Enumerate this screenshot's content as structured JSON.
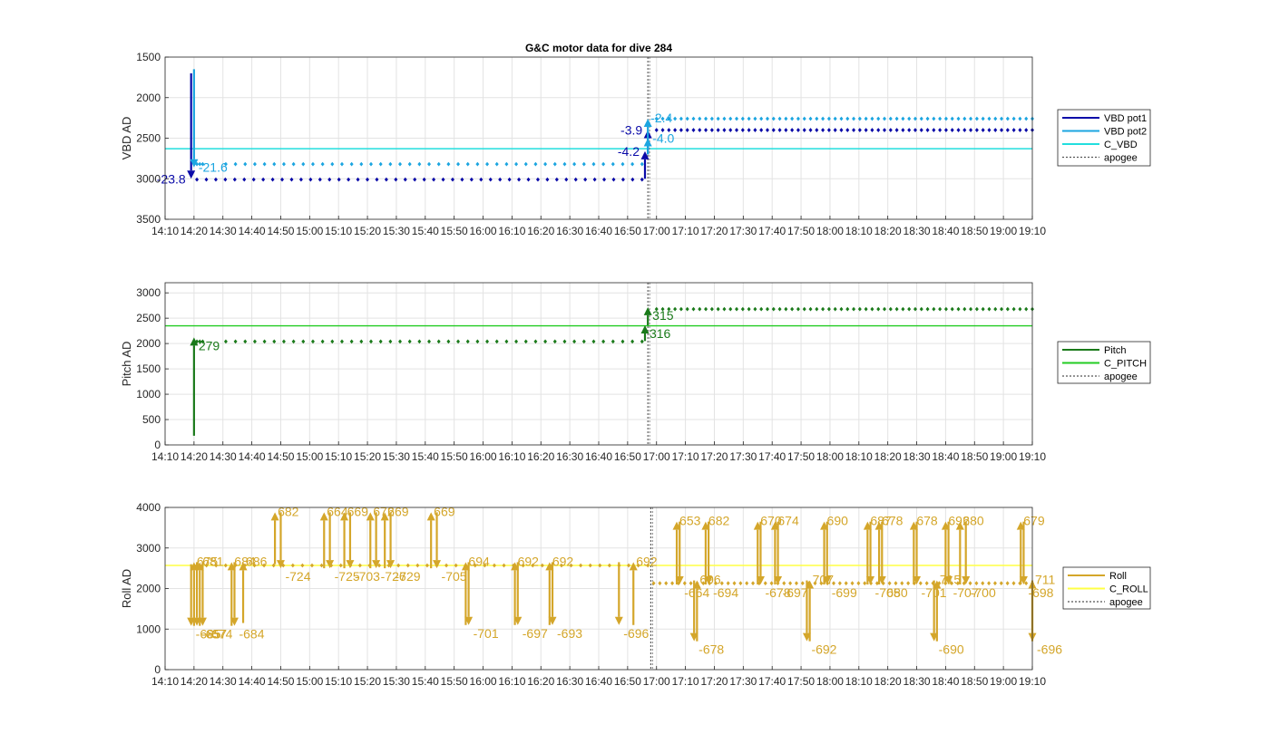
{
  "chart_data": [
    {
      "type": "scatter",
      "title": "G&C motor data for dive 284",
      "ylabel": "VBD AD",
      "ylim": [
        1500,
        3500
      ],
      "y_reversed": true,
      "yticks": [
        1500,
        2000,
        2500,
        3000,
        3500
      ],
      "xlim": [
        "14:10",
        "19:10"
      ],
      "xticks": [
        "14:10",
        "14:20",
        "14:30",
        "14:40",
        "14:50",
        "15:00",
        "15:10",
        "15:20",
        "15:30",
        "15:40",
        "15:50",
        "16:00",
        "16:10",
        "16:20",
        "16:30",
        "16:40",
        "16:50",
        "17:00",
        "17:10",
        "17:20",
        "17:30",
        "17:40",
        "17:50",
        "18:00",
        "18:10",
        "18:20",
        "18:30",
        "18:40",
        "18:50",
        "19:00",
        "19:10"
      ],
      "grid": true,
      "legend": {
        "placement": "right",
        "entries": [
          {
            "label": "VBD pot1",
            "color": "#0a0aa8",
            "style": "solid"
          },
          {
            "label": "VBD pot2",
            "color": "#1ba5e0",
            "style": "solid"
          },
          {
            "label": "C_VBD",
            "color": "#22dede",
            "style": "solid"
          },
          {
            "label": "apogee",
            "color": "#555555",
            "style": "dotted"
          }
        ]
      },
      "apogee": "16:57",
      "reference_lines": [
        {
          "name": "C_VBD",
          "y": 2630,
          "color": "#22dede"
        }
      ],
      "series": [
        {
          "name": "VBD pot1",
          "color": "#0a0aa8",
          "segments": [
            {
              "start": "14:21",
              "end": "16:55",
              "n": 48,
              "y": 3010
            },
            {
              "start": "17:00",
              "end": "19:10",
              "n": 62,
              "y": 2400
            }
          ]
        },
        {
          "name": "VBD pot2",
          "color": "#1ba5e0",
          "segments": [
            {
              "start": "14:21",
              "end": "14:23",
              "n": 3,
              "y": 2820
            },
            {
              "start": "14:31",
              "end": "16:55",
              "n": 44,
              "y": 2820
            },
            {
              "start": "17:00",
              "end": "19:10",
              "n": 62,
              "y": 2260
            }
          ]
        }
      ],
      "arrows": [
        {
          "t": "14:19",
          "y0": 1700,
          "y1": 3000,
          "color": "#0a0aa8",
          "label": "-23.8",
          "label_side": "left"
        },
        {
          "t": "14:20",
          "y0": 1650,
          "y1": 2860,
          "color": "#1ba5e0",
          "label": "-21.6",
          "label_side": "right"
        },
        {
          "t": "16:56",
          "y0": 3000,
          "y1": 2660,
          "color": "#0a0aa8",
          "label": "-4.2",
          "label_side": "left"
        },
        {
          "t": "16:57",
          "y0": 2700,
          "y1": 2400,
          "color": "#0a0aa8",
          "label": "-3.9",
          "label_side": "left"
        },
        {
          "t": "16:57",
          "y0": 2630,
          "y1": 2260,
          "color": "#1ba5e0",
          "label": "-2.4",
          "label_side": "right_top"
        },
        {
          "t": "16:57",
          "y0": 2700,
          "y1": 2500,
          "color": "#1ba5e0",
          "label": "-4.0",
          "label_side": "right"
        }
      ]
    },
    {
      "type": "scatter",
      "ylabel": "Pitch AD",
      "ylim": [
        0,
        3200
      ],
      "yticks": [
        0,
        500,
        1000,
        1500,
        2000,
        2500,
        3000
      ],
      "xlim": [
        "14:10",
        "19:10"
      ],
      "xticks": [
        "14:10",
        "14:20",
        "14:30",
        "14:40",
        "14:50",
        "15:00",
        "15:10",
        "15:20",
        "15:30",
        "15:40",
        "15:50",
        "16:00",
        "16:10",
        "16:20",
        "16:30",
        "16:40",
        "16:50",
        "17:00",
        "17:10",
        "17:20",
        "17:30",
        "17:40",
        "17:50",
        "18:00",
        "18:10",
        "18:20",
        "18:30",
        "18:40",
        "18:50",
        "19:00",
        "19:10"
      ],
      "grid": true,
      "legend": {
        "placement": "right",
        "entries": [
          {
            "label": "Pitch",
            "color": "#1a7a1a",
            "style": "solid"
          },
          {
            "label": "C_PITCH",
            "color": "#22cc22",
            "style": "solid"
          },
          {
            "label": "apogee",
            "color": "#555555",
            "style": "dotted"
          }
        ]
      },
      "apogee": "16:57",
      "reference_lines": [
        {
          "name": "C_PITCH",
          "y": 2350,
          "color": "#22cc22"
        }
      ],
      "series": [
        {
          "name": "Pitch",
          "color": "#1a7a1a",
          "segments": [
            {
              "start": "14:21",
              "end": "14:23",
              "n": 3,
              "y": 2040
            },
            {
              "start": "14:31",
              "end": "16:55",
              "n": 44,
              "y": 2040
            },
            {
              "start": "17:00",
              "end": "19:10",
              "n": 62,
              "y": 2680
            }
          ]
        }
      ],
      "arrows": [
        {
          "t": "14:20",
          "y0": 180,
          "y1": 2120,
          "color": "#1a7a1a",
          "label": "279",
          "label_side": "right_below"
        },
        {
          "t": "16:56",
          "y0": 2050,
          "y1": 2360,
          "color": "#1a7a1a",
          "label": "316",
          "label_side": "right_below"
        },
        {
          "t": "16:57",
          "y0": 2360,
          "y1": 2720,
          "color": "#1a7a1a",
          "label": "315",
          "label_side": "right_below"
        }
      ]
    },
    {
      "type": "scatter",
      "ylabel": "Roll AD",
      "ylim": [
        0,
        4000
      ],
      "yticks": [
        0,
        1000,
        2000,
        3000,
        4000
      ],
      "xlim": [
        "14:10",
        "19:10"
      ],
      "xticks": [
        "14:10",
        "14:20",
        "14:30",
        "14:40",
        "14:50",
        "15:00",
        "15:10",
        "15:20",
        "15:30",
        "15:40",
        "15:50",
        "16:00",
        "16:10",
        "16:20",
        "16:30",
        "16:40",
        "16:50",
        "17:00",
        "17:10",
        "17:20",
        "17:30",
        "17:40",
        "17:50",
        "18:00",
        "18:10",
        "18:20",
        "18:30",
        "18:40",
        "18:50",
        "19:00",
        "19:10"
      ],
      "grid": true,
      "legend": {
        "placement": "right",
        "entries": [
          {
            "label": "Roll",
            "color": "#d4a62a",
            "style": "solid"
          },
          {
            "label": "C_ROLL",
            "color": "#ffff44",
            "style": "solid"
          },
          {
            "label": "apogee",
            "color": "#555555",
            "style": "dotted"
          }
        ]
      },
      "apogee": "16:58",
      "reference_lines": [
        {
          "name": "C_ROLL",
          "y": 2570,
          "color": "#ffff44"
        }
      ],
      "series": [
        {
          "name": "Roll",
          "color": "#d4a62a",
          "segments": [
            {
              "start": "14:21",
              "end": "16:57",
              "n": 48,
              "y": 2570
            },
            {
              "start": "16:59",
              "end": "19:10",
              "n": 62,
              "y": 2130
            }
          ]
        }
      ],
      "arrows": [
        {
          "t": "14:19",
          "y0": 2600,
          "y1": 1080,
          "color": "#d4a62a",
          "label": "-685",
          "label_side": "right_below"
        },
        {
          "t": "14:20",
          "y0": 1080,
          "y1": 2650,
          "color": "#d4a62a",
          "label": "675",
          "label_side": "right_top"
        },
        {
          "t": "14:21",
          "y0": 2650,
          "y1": 1080,
          "color": "#d4a62a",
          "label": "-657",
          "label_side": "right_below"
        },
        {
          "t": "14:22",
          "y0": 1080,
          "y1": 2650,
          "color": "#d4a62a",
          "label": "681",
          "label_side": "right_top"
        },
        {
          "t": "14:23",
          "y0": 2650,
          "y1": 1080,
          "color": "#d4a62a",
          "label": "-674",
          "label_side": "right_below"
        },
        {
          "t": "14:33",
          "y0": 1080,
          "y1": 2650,
          "color": "#d4a62a",
          "label": "684",
          "label_side": "right_top"
        },
        {
          "t": "14:34",
          "y0": 2650,
          "y1": 1080,
          "color": "#d4a62a",
          "label": "-684",
          "label_side": "right_below"
        },
        {
          "t": "14:37",
          "y0": 1150,
          "y1": 2650,
          "color": "#d4a62a",
          "label": "686",
          "label_side": "right_top"
        },
        {
          "t": "14:48",
          "y0": 2600,
          "y1": 3880,
          "color": "#d4a62a",
          "label": "682",
          "label_side": "right_top"
        },
        {
          "t": "14:50",
          "y0": 3880,
          "y1": 2500,
          "color": "#d4a62a",
          "label": "-724",
          "label_side": "right_below"
        },
        {
          "t": "15:05",
          "y0": 2500,
          "y1": 3880,
          "color": "#d4a62a",
          "label": "664",
          "label_side": "right_top"
        },
        {
          "t": "15:07",
          "y0": 3880,
          "y1": 2500,
          "color": "#d4a62a",
          "label": "-725",
          "label_side": "right_below"
        },
        {
          "t": "15:12",
          "y0": 2500,
          "y1": 3880,
          "color": "#d4a62a",
          "label": "669",
          "label_side": "right_top"
        },
        {
          "t": "15:14",
          "y0": 3880,
          "y1": 2500,
          "color": "#d4a62a",
          "label": "-703",
          "label_side": "right_below"
        },
        {
          "t": "15:21",
          "y0": 2500,
          "y1": 3880,
          "color": "#d4a62a",
          "label": "672",
          "label_side": "right_top"
        },
        {
          "t": "15:23",
          "y0": 3880,
          "y1": 2500,
          "color": "#d4a62a",
          "label": "-726",
          "label_side": "right_below"
        },
        {
          "t": "15:26",
          "y0": 2500,
          "y1": 3880,
          "color": "#d4a62a",
          "label": "669",
          "label_side": "right_top"
        },
        {
          "t": "15:28",
          "y0": 3880,
          "y1": 2500,
          "color": "#d4a62a",
          "label": "-729",
          "label_side": "right_below"
        },
        {
          "t": "15:42",
          "y0": 2500,
          "y1": 3880,
          "color": "#d4a62a",
          "label": "669",
          "label_side": "right_top"
        },
        {
          "t": "15:44",
          "y0": 3880,
          "y1": 2500,
          "color": "#d4a62a",
          "label": "-705",
          "label_side": "right_below"
        },
        {
          "t": "15:54",
          "y0": 1100,
          "y1": 2650,
          "color": "#d4a62a",
          "label": "694",
          "label_side": "right_top"
        },
        {
          "t": "15:55",
          "y0": 2650,
          "y1": 1100,
          "color": "#d4a62a",
          "label": "-701",
          "label_side": "right_below"
        },
        {
          "t": "16:11",
          "y0": 1100,
          "y1": 2650,
          "color": "#d4a62a",
          "label": "692",
          "label_side": "right_top"
        },
        {
          "t": "16:12",
          "y0": 2650,
          "y1": 1100,
          "color": "#d4a62a",
          "label": "-697",
          "label_side": "right_below"
        },
        {
          "t": "16:23",
          "y0": 1100,
          "y1": 2650,
          "color": "#d4a62a",
          "label": "692",
          "label_side": "right_top"
        },
        {
          "t": "16:24",
          "y0": 2650,
          "y1": 1100,
          "color": "#d4a62a",
          "label": "-693",
          "label_side": "right_below"
        },
        {
          "t": "16:47",
          "y0": 2650,
          "y1": 1100,
          "color": "#d4a62a",
          "label": "-696",
          "label_side": "right_below"
        },
        {
          "t": "16:52",
          "y0": 1100,
          "y1": 2650,
          "color": "#d4a62a",
          "label": "692",
          "label_side": "right_top"
        },
        {
          "t": "17:07",
          "y0": 2100,
          "y1": 3650,
          "color": "#d4a62a",
          "label": "653",
          "label_side": "right_top"
        },
        {
          "t": "17:08",
          "y0": 3650,
          "y1": 2100,
          "color": "#d4a62a",
          "label": "-664",
          "label_side": "right_below"
        },
        {
          "t": "17:13",
          "y0": 2200,
          "y1": 700,
          "color": "#d4a62a",
          "label": "-678",
          "label_side": "right_below"
        },
        {
          "t": "17:14",
          "y0": 700,
          "y1": 2200,
          "color": "#d4a62a",
          "label": "696",
          "label_side": "right_top"
        },
        {
          "t": "17:17",
          "y0": 2100,
          "y1": 3650,
          "color": "#d4a62a",
          "label": "682",
          "label_side": "right_top"
        },
        {
          "t": "17:18",
          "y0": 3650,
          "y1": 2100,
          "color": "#d4a62a",
          "label": "-694",
          "label_side": "right_below"
        },
        {
          "t": "17:35",
          "y0": 2100,
          "y1": 3650,
          "color": "#d4a62a",
          "label": "670",
          "label_side": "right_top"
        },
        {
          "t": "17:36",
          "y0": 3650,
          "y1": 2100,
          "color": "#d4a62a",
          "label": "-678",
          "label_side": "right_below"
        },
        {
          "t": "17:41",
          "y0": 2100,
          "y1": 3650,
          "color": "#d4a62a",
          "label": "674",
          "label_side": "right_top"
        },
        {
          "t": "17:42",
          "y0": 3650,
          "y1": 2100,
          "color": "#d4a62a",
          "label": "-697",
          "label_side": "right_below"
        },
        {
          "t": "17:52",
          "y0": 2200,
          "y1": 700,
          "color": "#d4a62a",
          "label": "-692",
          "label_side": "right_below"
        },
        {
          "t": "17:53",
          "y0": 700,
          "y1": 2200,
          "color": "#d4a62a",
          "label": "707",
          "label_side": "right_top"
        },
        {
          "t": "17:58",
          "y0": 2100,
          "y1": 3650,
          "color": "#d4a62a",
          "label": "690",
          "label_side": "right_top"
        },
        {
          "t": "17:59",
          "y0": 3650,
          "y1": 2100,
          "color": "#d4a62a",
          "label": "-699",
          "label_side": "right_below"
        },
        {
          "t": "18:13",
          "y0": 2100,
          "y1": 3650,
          "color": "#d4a62a",
          "label": "687",
          "label_side": "right_top"
        },
        {
          "t": "18:14",
          "y0": 3650,
          "y1": 2100,
          "color": "#d4a62a",
          "label": "-705",
          "label_side": "right_below"
        },
        {
          "t": "18:17",
          "y0": 2100,
          "y1": 3650,
          "color": "#d4a62a",
          "label": "678",
          "label_side": "right_top"
        },
        {
          "t": "18:18",
          "y0": 3650,
          "y1": 2100,
          "color": "#d4a62a",
          "label": "680",
          "label_side": "right_below"
        },
        {
          "t": "18:29",
          "y0": 2100,
          "y1": 3650,
          "color": "#d4a62a",
          "label": "678",
          "label_side": "right_top"
        },
        {
          "t": "18:30",
          "y0": 3650,
          "y1": 2100,
          "color": "#d4a62a",
          "label": "-701",
          "label_side": "right_below"
        },
        {
          "t": "18:36",
          "y0": 2200,
          "y1": 700,
          "color": "#d4a62a",
          "label": "-690",
          "label_side": "right_below"
        },
        {
          "t": "18:37",
          "y0": 700,
          "y1": 2200,
          "color": "#d4a62a",
          "label": "715",
          "label_side": "right_top"
        },
        {
          "t": "18:40",
          "y0": 2100,
          "y1": 3650,
          "color": "#d4a62a",
          "label": "692",
          "label_side": "right_top"
        },
        {
          "t": "18:41",
          "y0": 3650,
          "y1": 2100,
          "color": "#d4a62a",
          "label": "-707",
          "label_side": "right_below"
        },
        {
          "t": "18:45",
          "y0": 2100,
          "y1": 3650,
          "color": "#d4a62a",
          "label": "680",
          "label_side": "right_top"
        },
        {
          "t": "18:47",
          "y0": 3650,
          "y1": 2100,
          "color": "#d4a62a",
          "label": "-700",
          "label_side": "right_below"
        },
        {
          "t": "19:06",
          "y0": 2100,
          "y1": 3650,
          "color": "#d4a62a",
          "label": "679",
          "label_side": "right_top"
        },
        {
          "t": "19:07",
          "y0": 3650,
          "y1": 2100,
          "color": "#d4a62a",
          "label": "-698",
          "label_side": "right_below"
        },
        {
          "t": "19:10",
          "y0": 2200,
          "y1": 700,
          "color": "#d4a62a",
          "label": "-696",
          "label_side": "right_below"
        },
        {
          "t": "19:10",
          "y0": 700,
          "y1": 2200,
          "color": "#d4a62a",
          "label": "711",
          "label_side": "right_top"
        }
      ]
    }
  ]
}
